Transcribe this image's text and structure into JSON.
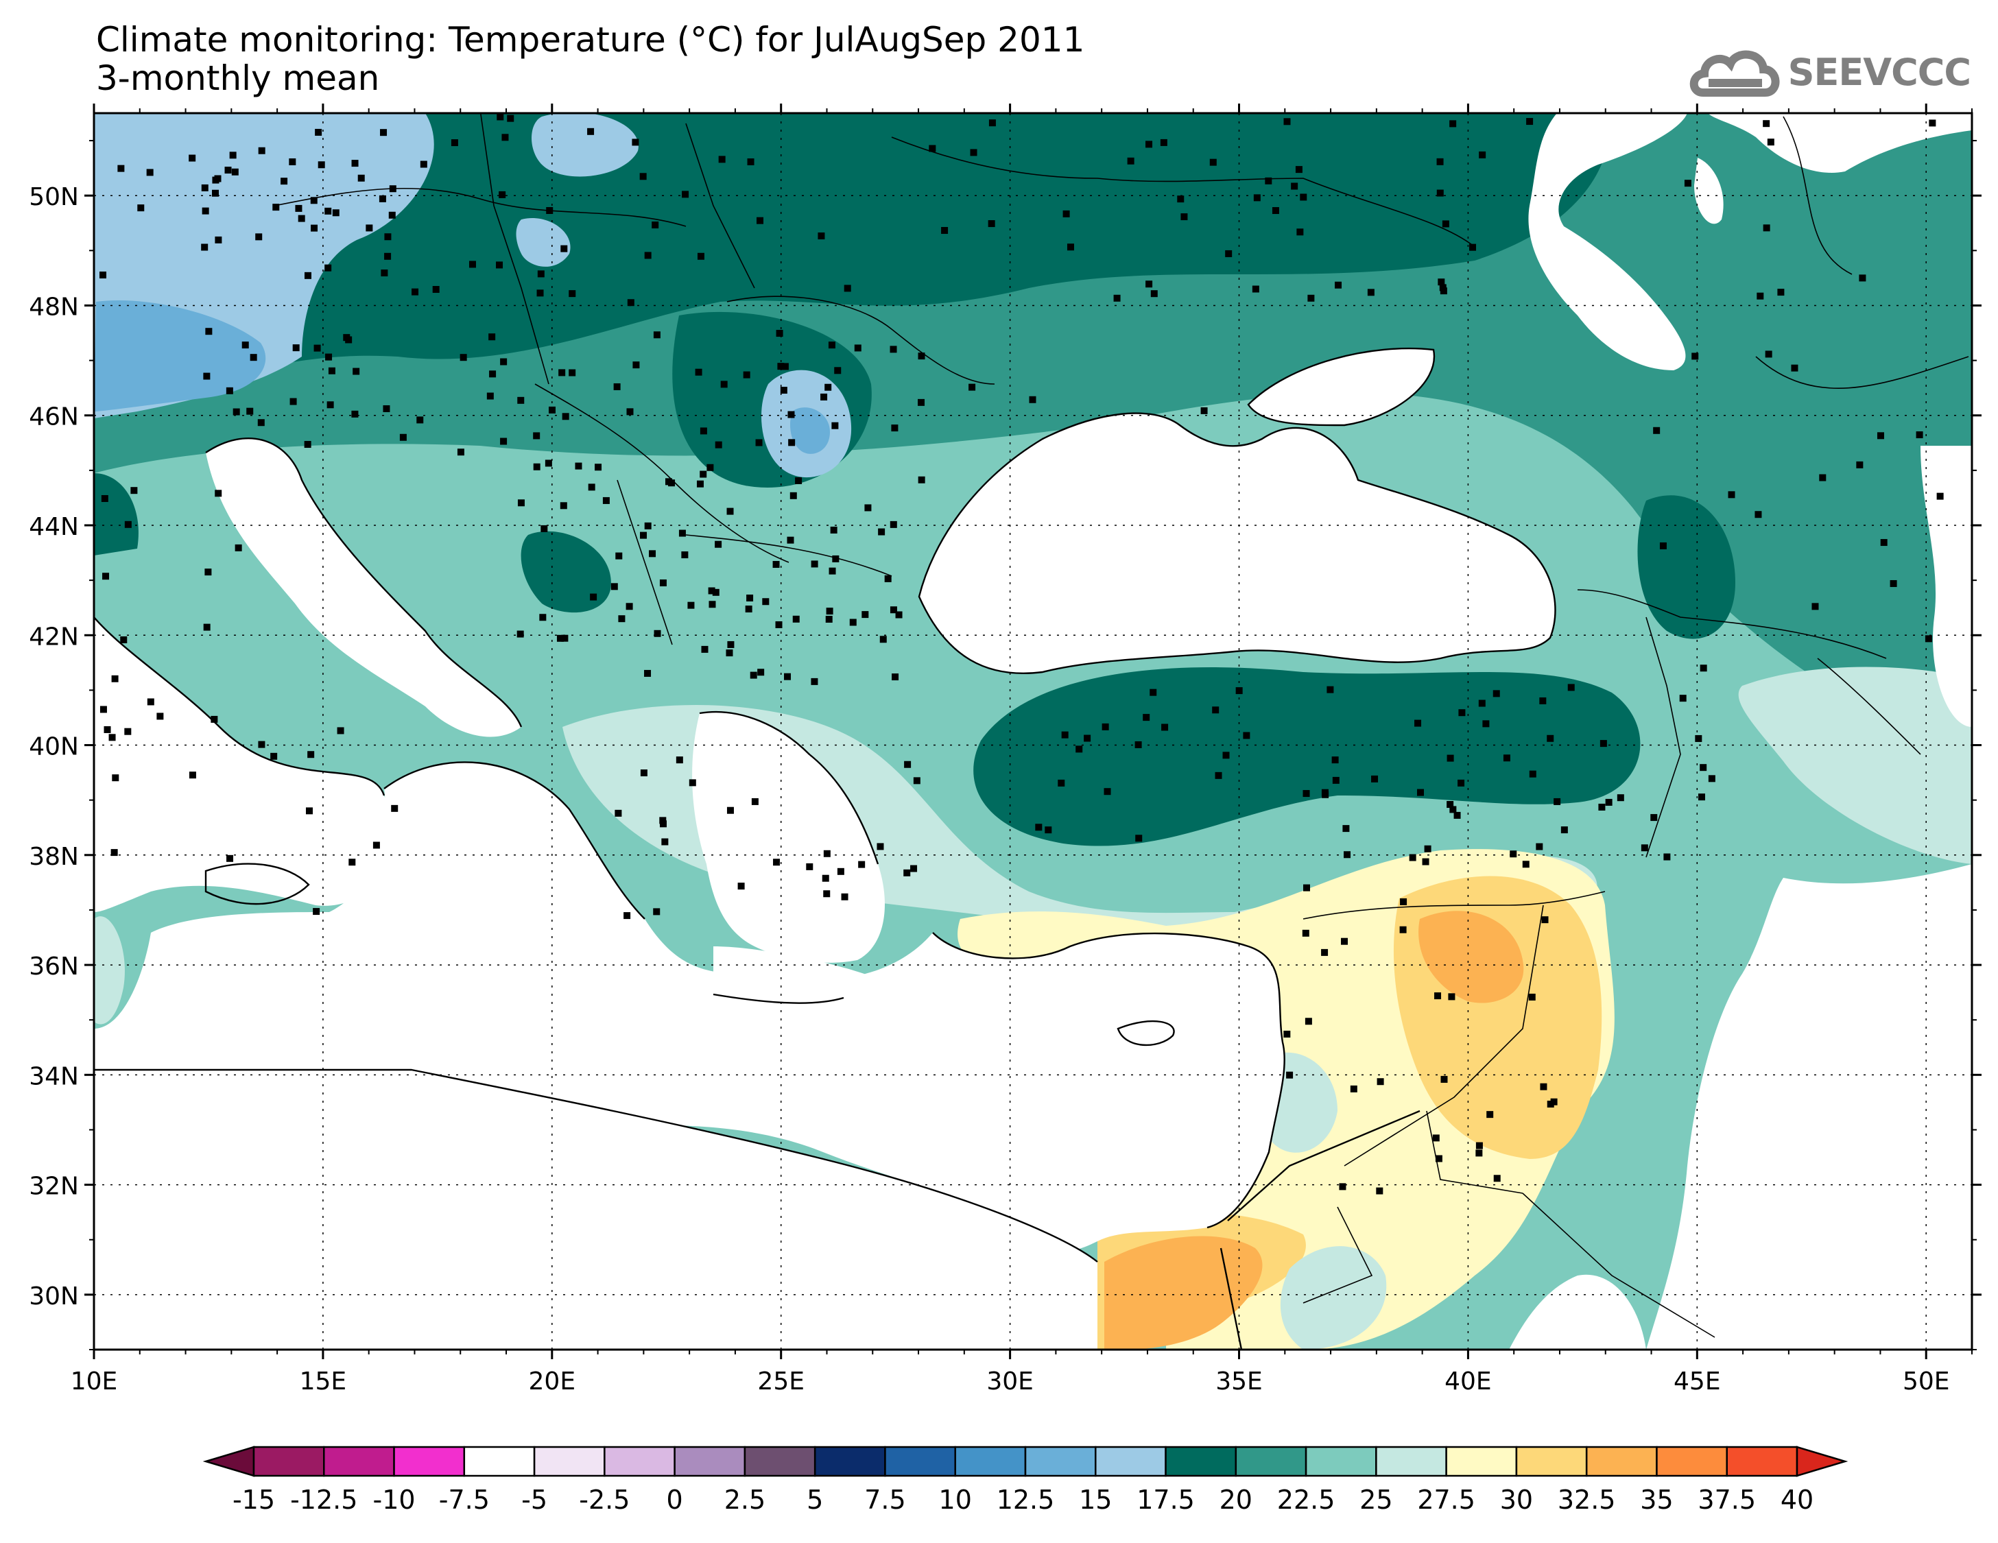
{
  "title": {
    "line1": "Climate monitoring: Temperature (°C) for JulAugSep 2011",
    "line2": "3-monthly mean"
  },
  "logo": {
    "text": "SEEVCCC",
    "icon": "cloud-icon"
  },
  "map": {
    "lat_labels": [
      "50N",
      "48N",
      "46N",
      "44N",
      "42N",
      "40N",
      "38N",
      "36N",
      "34N",
      "32N",
      "30N"
    ],
    "lat_values": [
      50,
      48,
      46,
      44,
      42,
      40,
      38,
      36,
      34,
      32,
      30
    ],
    "lon_labels": [
      "10E",
      "15E",
      "20E",
      "25E",
      "30E",
      "35E",
      "40E",
      "45E",
      "50E"
    ],
    "lon_values": [
      10,
      15,
      20,
      25,
      30,
      35,
      40,
      45,
      50
    ],
    "lon_range": [
      10,
      51
    ],
    "lat_range": [
      29,
      51.5
    ]
  },
  "colorbar": {
    "labels": [
      "-15",
      "-12.5",
      "-10",
      "-7.5",
      "-5",
      "-2.5",
      "0",
      "2.5",
      "5",
      "7.5",
      "10",
      "12.5",
      "15",
      "17.5",
      "20",
      "22.5",
      "25",
      "27.5",
      "30",
      "32.5",
      "35",
      "37.5",
      "40"
    ],
    "colors": [
      "#9b1a63",
      "#c01c8e",
      "#f22fce",
      "#ffffff",
      "#f1e4f4",
      "#dab9e3",
      "#aa8cbe",
      "#6d4f70",
      "#0b2c6b",
      "#1f62a5",
      "#4493c8",
      "#6aafd8",
      "#9dcae5",
      "#006b5e",
      "#319889",
      "#7dcbbd",
      "#c5e8e1",
      "#fffac4",
      "#fdd879",
      "#fcb252",
      "#fd8c3c",
      "#f44f2a"
    ],
    "under_color": "#6b0b3a",
    "over_color": "#d9261c"
  }
}
